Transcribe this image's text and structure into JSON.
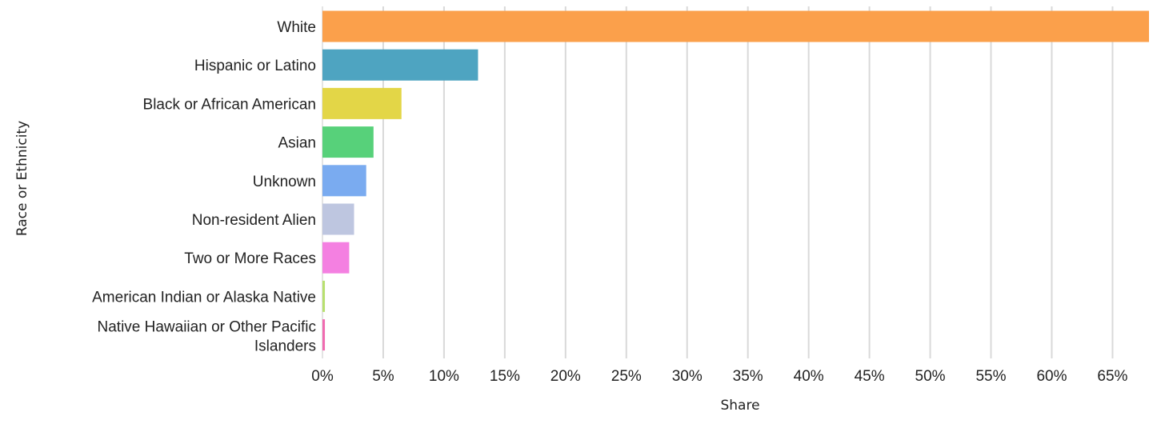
{
  "chart_data": {
    "type": "bar",
    "orientation": "horizontal",
    "xlabel": "Share",
    "ylabel": "Race or Ethnicity",
    "xlim": [
      0,
      68
    ],
    "x_ticks": [
      "0%",
      "5%",
      "10%",
      "15%",
      "20%",
      "25%",
      "30%",
      "35%",
      "40%",
      "45%",
      "50%",
      "55%",
      "60%",
      "65%"
    ],
    "grid": "vertical",
    "categories": [
      "White",
      "Hispanic or Latino",
      "Black or African American",
      "Asian",
      "Unknown",
      "Non-resident Alien",
      "Two or More Races",
      "American Indian or Alaska Native",
      "Native Hawaiian or Other Pacific Islanders"
    ],
    "values": [
      68.0,
      12.8,
      6.5,
      4.2,
      3.6,
      2.6,
      2.2,
      0.2,
      0.2
    ],
    "colors": [
      "#FBA04B",
      "#4EA4C1",
      "#E3D647",
      "#57D17A",
      "#7AABF0",
      "#BEC6E0",
      "#F480E1",
      "#B8E06F",
      "#F06BB0"
    ]
  }
}
